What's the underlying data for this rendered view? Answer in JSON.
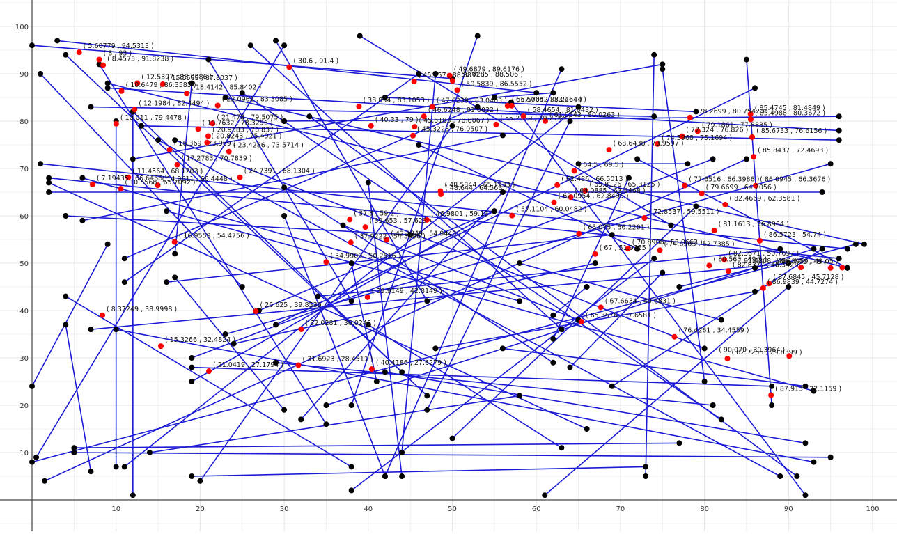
{
  "chart_data": {
    "type": "line",
    "x_ticks": [
      "10",
      "20",
      "30",
      "40",
      "50",
      "60",
      "70",
      "80",
      "90",
      "100"
    ],
    "y_ticks": [
      "10",
      "20",
      "30",
      "40",
      "50",
      "60",
      "70",
      "80",
      "90",
      "100"
    ],
    "xlim": [
      0,
      103
    ],
    "ylim": [
      -2,
      103
    ],
    "grid": true,
    "colors": {
      "segment": "#1a1ad6",
      "endpoint": "#000000",
      "intersection": "#ff0000",
      "grid": "#e6e6e6",
      "axis": "#444444"
    },
    "segments": [
      [
        0,
        96,
        50,
        89
      ],
      [
        0,
        8,
        98,
        54
      ],
      [
        0,
        24,
        9,
        54
      ],
      [
        0.5,
        9,
        30,
        96
      ],
      [
        1,
        90,
        25,
        45
      ],
      [
        1,
        71,
        97,
        53
      ],
      [
        2,
        68,
        96,
        51
      ],
      [
        2,
        67,
        66,
        15
      ],
      [
        2,
        65,
        94,
        65
      ],
      [
        1.5,
        4,
        85,
        72
      ],
      [
        3,
        97,
        60,
        86
      ],
      [
        4,
        94,
        47,
        22
      ],
      [
        4,
        60,
        45,
        56
      ],
      [
        4,
        43,
        38,
        7
      ],
      [
        4,
        37,
        7,
        6
      ],
      [
        5,
        11,
        77,
        12
      ],
      [
        5,
        10,
        95,
        9
      ],
      [
        6,
        68,
        58,
        42
      ],
      [
        6,
        59,
        56,
        77
      ],
      [
        7,
        83,
        74,
        81
      ],
      [
        7,
        36,
        90,
        50
      ],
      [
        8,
        92,
        35,
        16
      ],
      [
        9,
        88,
        97,
        49
      ],
      [
        9,
        87,
        96,
        78
      ],
      [
        10,
        80,
        10,
        7
      ],
      [
        10,
        36,
        93,
        8
      ],
      [
        11,
        51,
        53,
        83
      ],
      [
        11,
        46,
        46,
        90
      ],
      [
        11,
        7,
        65,
        83
      ],
      [
        12,
        82,
        44,
        27
      ],
      [
        12,
        72,
        75,
        92
      ],
      [
        12,
        1,
        12,
        82
      ],
      [
        13,
        79,
        96,
        76
      ],
      [
        14,
        10,
        58,
        22
      ],
      [
        15,
        76,
        89,
        5
      ],
      [
        16,
        61,
        93,
        23
      ],
      [
        16,
        46,
        69,
        56
      ],
      [
        17,
        52,
        19,
        88
      ],
      [
        17,
        47,
        30,
        19
      ],
      [
        17,
        76,
        80,
        32
      ],
      [
        19,
        30,
        81,
        72
      ],
      [
        20,
        4,
        50,
        79
      ],
      [
        19,
        5,
        73,
        7
      ],
      [
        19,
        28,
        88,
        24
      ],
      [
        19,
        25,
        55,
        61
      ],
      [
        21,
        93,
        38,
        42
      ],
      [
        23,
        85,
        99,
        54
      ],
      [
        23,
        35,
        95,
        71
      ],
      [
        24,
        33,
        67,
        50
      ],
      [
        25,
        86,
        82,
        17
      ],
      [
        26,
        96,
        63,
        36
      ],
      [
        27,
        40,
        55,
        61
      ],
      [
        29,
        97,
        47,
        42
      ],
      [
        29,
        37,
        86,
        87
      ],
      [
        29,
        29,
        81,
        20
      ],
      [
        30,
        80,
        96,
        81
      ],
      [
        30,
        66,
        62,
        29
      ],
      [
        30,
        60,
        42,
        5
      ],
      [
        32,
        17,
        56,
        65
      ],
      [
        33,
        81,
        91,
        5
      ],
      [
        34,
        43,
        89,
        53
      ],
      [
        35,
        20,
        93,
        53
      ],
      [
        37,
        58,
        65,
        38
      ],
      [
        38,
        50,
        41,
        25
      ],
      [
        38,
        2,
        74,
        51
      ],
      [
        39,
        98,
        76,
        58
      ],
      [
        40,
        37,
        63,
        11
      ],
      [
        42,
        27,
        92,
        12
      ],
      [
        42,
        85,
        79,
        82
      ],
      [
        44,
        10,
        48,
        90
      ],
      [
        44,
        5,
        40,
        67
      ],
      [
        46,
        75,
        72,
        53
      ],
      [
        47,
        19,
        64,
        80
      ],
      [
        48,
        32,
        86,
        44
      ],
      [
        50,
        13,
        79,
        62
      ],
      [
        53,
        98,
        38,
        20
      ],
      [
        55,
        85,
        62,
        86
      ],
      [
        56,
        32,
        92,
        24
      ],
      [
        57,
        84,
        92,
        1
      ],
      [
        58,
        50,
        82,
        38
      ],
      [
        61,
        1,
        90,
        45
      ],
      [
        62,
        34,
        71,
        68
      ],
      [
        63,
        91,
        42,
        5
      ],
      [
        64,
        28,
        75,
        48
      ],
      [
        65,
        71,
        78,
        71
      ],
      [
        66,
        45,
        62,
        39
      ],
      [
        69,
        24,
        94,
        53
      ],
      [
        72,
        72,
        97,
        49
      ],
      [
        73,
        5,
        74,
        94
      ],
      [
        75,
        91,
        80,
        25
      ],
      [
        77,
        45,
        86,
        49
      ],
      [
        85,
        93,
        88,
        20
      ]
    ],
    "intersections": [
      {
        "label": "( 5.60779 , 94.5313 )",
        "x": 5.60779,
        "y": 94.5313
      },
      {
        "label": "( 8 , 93 )",
        "x": 8,
        "y": 93
      },
      {
        "label": "( 8.4573 , 91.8238 )",
        "x": 8.4573,
        "y": 91.8238
      },
      {
        "label": "( 15.5583 , 87.8037 )",
        "x": 15.5583,
        "y": 87.8037
      },
      {
        "label": "( 18.4142 , 85.8402 )",
        "x": 18.4142,
        "y": 85.8402
      },
      {
        "label": "( 30.6 , 91.4 )",
        "x": 30.6,
        "y": 91.4
      },
      {
        "label": "( 22.0961 , 83.3085 )",
        "x": 22.0961,
        "y": 83.3085
      },
      {
        "label": "( 10.6479 , 86.3585 )",
        "x": 10.6479,
        "y": 86.3585
      },
      {
        "label": "( 12.5307 , 88.0086 )",
        "x": 12.5307,
        "y": 88.0086
      },
      {
        "label": "( 12.1984 , 82.4494 )",
        "x": 12.1984,
        "y": 82.4494
      },
      {
        "label": "( 21.478 , 79.5075 )",
        "x": 21.478,
        "y": 79.5075
      },
      {
        "label": "( 10.011 , 79.4478 )",
        "x": 10.011,
        "y": 79.4478
      },
      {
        "label": "( 19.7632 , 78.3296 )",
        "x": 19.7632,
        "y": 78.3296
      },
      {
        "label": "( 20.9583 , 76.837 )",
        "x": 20.9583,
        "y": 76.837
      },
      {
        "label": "( 20.8243 , 75.4921 )",
        "x": 20.8243,
        "y": 75.4921
      },
      {
        "label": "( 23.4286 , 73.5714 )",
        "x": 23.4286,
        "y": 73.5714
      },
      {
        "label": "( 16.369 , 73.969 )",
        "x": 16.369,
        "y": 73.969
      },
      {
        "label": "( 17.2783 , 70.7839 )",
        "x": 17.2783,
        "y": 70.7839
      },
      {
        "label": "( 24.7391 , 68.1304 )",
        "x": 24.7391,
        "y": 68.1304
      },
      {
        "label": "( 11.4564 , 68.1203 )",
        "x": 11.4564,
        "y": 68.1203
      },
      {
        "label": "( 14.9611 , 66.4448 )",
        "x": 14.9611,
        "y": 66.4448
      },
      {
        "label": "( 7.19435 , 66.6466 )",
        "x": 7.19435,
        "y": 66.6466
      },
      {
        "label": "( 10.5568 , 65.7092 )",
        "x": 10.5568,
        "y": 65.7092
      },
      {
        "label": "( 16.9559 , 54.4756 )",
        "x": 16.9559,
        "y": 54.4756
      },
      {
        "label": "( 38.894 , 83.1053 )",
        "x": 38.894,
        "y": 83.1053
      },
      {
        "label": "( 45.457 , 88.3831 )",
        "x": 45.457,
        "y": 88.3831
      },
      {
        "label": "( 49.6879 , 89.6176 )",
        "x": 49.6879,
        "y": 89.6176
      },
      {
        "label": "( 50.0285 , 88.506 )",
        "x": 50.0285,
        "y": 88.506
      },
      {
        "label": "( 50.5839 , 86.5552 )",
        "x": 50.5839,
        "y": 86.5552
      },
      {
        "label": "( 47.6239 , 83.0403 )",
        "x": 47.6239,
        "y": 83.0403
      },
      {
        "label": "( 57.0652 , 83.2644 )",
        "x": 57.0652,
        "y": 83.2644
      },
      {
        "label": "( 56.5704 , 83.2464 )",
        "x": 56.5704,
        "y": 83.2464
      },
      {
        "label": "( 46.6248 , 81.0032 )",
        "x": 46.6248,
        "y": 81.0032
      },
      {
        "label": "( 58.4654 , 81.0432 )",
        "x": 58.4654,
        "y": 81.0432
      },
      {
        "label": "( 61.0543 , 80.0263 )",
        "x": 61.0543,
        "y": 80.0263
      },
      {
        "label": "( 55.2119 , 79.2756 )",
        "x": 55.2119,
        "y": 79.2756
      },
      {
        "label": "( 45.5183 , 78.8067 )",
        "x": 45.5183,
        "y": 78.8067
      },
      {
        "label": "( 45.3223 , 76.9507 )",
        "x": 45.3223,
        "y": 76.9507
      },
      {
        "label": "( 40.33 , 79 )",
        "x": 40.33,
        "y": 79
      },
      {
        "label": "( 78.2699 , 80.7542 )",
        "x": 78.2699,
        "y": 80.7542
      },
      {
        "label": "( 85.4745 , 81.4849 )",
        "x": 85.4745,
        "y": 81.4849
      },
      {
        "label": "( 85.4988 , 80.3672 )",
        "x": 85.4988,
        "y": 80.3672
      },
      {
        "label": "( 79.1861 , 77.8835 )",
        "x": 79.1861,
        "y": 77.8835
      },
      {
        "label": "( 77.324 , 76.826 )",
        "x": 77.324,
        "y": 76.826
      },
      {
        "label": "( 85.6733 , 76.6156 )",
        "x": 85.6733,
        "y": 76.6156
      },
      {
        "label": "( 74.3968 , 75.1694 )",
        "x": 74.3968,
        "y": 75.1694
      },
      {
        "label": "( 68.6438 , 73.9597 )",
        "x": 68.6438,
        "y": 73.9597
      },
      {
        "label": "( 85.8437 , 72.4693 )",
        "x": 85.8437,
        "y": 72.4693
      },
      {
        "label": "( 64.5 , 69.5 )",
        "x": 64.5,
        "y": 69.5
      },
      {
        "label": "( 77.6516 , 66.3986 )",
        "x": 77.6516,
        "y": 66.3986
      },
      {
        "label": "( 86.0945 , 66.3676 )",
        "x": 86.0945,
        "y": 66.3676
      },
      {
        "label": "( 62.486 , 66.5013 )",
        "x": 62.486,
        "y": 66.5013
      },
      {
        "label": "( 65.8126 , 65.3125 )",
        "x": 65.8126,
        "y": 65.3125
      },
      {
        "label": "( 48.5844 , 65.1933 )",
        "x": 48.5844,
        "y": 65.1933
      },
      {
        "label": "( 48.644 , 64.563 )",
        "x": 48.644,
        "y": 64.563
      },
      {
        "label": "( 79.6699 , 64.7056 )",
        "x": 79.6699,
        "y": 64.7056
      },
      {
        "label": "( 64.0885 , 63.9468 )",
        "x": 64.0885,
        "y": 63.9468
      },
      {
        "label": "( 62.0954 , 62.8499 )",
        "x": 62.0954,
        "y": 62.8499
      },
      {
        "label": "( 82.4669 , 62.3581 )",
        "x": 82.4669,
        "y": 62.3581
      },
      {
        "label": "( 57.1104 , 60.0482 )",
        "x": 57.1104,
        "y": 60.0482
      },
      {
        "label": "( 72.8537 , 59.5511 )",
        "x": 72.8537,
        "y": 59.5511
      },
      {
        "label": "( 37.8 , 59.2 )",
        "x": 37.8,
        "y": 59.2
      },
      {
        "label": "( 46.9801 , 59.13 )",
        "x": 46.9801,
        "y": 59.13
      },
      {
        "label": "( 39.653 , 57.629 )",
        "x": 39.653,
        "y": 57.629
      },
      {
        "label": "( 81.1613 , 56.8964 )",
        "x": 81.1613,
        "y": 56.8964
      },
      {
        "label": "( 37.9222 , 54.3696 )",
        "x": 37.9222,
        "y": 54.3696
      },
      {
        "label": "( 42.1849 , 54.9443 )",
        "x": 42.1849,
        "y": 54.9443
      },
      {
        "label": "( 65.075 , 56.2201 )",
        "x": 65.075,
        "y": 56.2201
      },
      {
        "label": "( 86.5723 , 54.74 )",
        "x": 86.5723,
        "y": 54.74
      },
      {
        "label": "( 70.8908 , 53.0663 )",
        "x": 70.8908,
        "y": 53.0663
      },
      {
        "label": "( 74.6903 , 52.7385 )",
        "x": 74.6903,
        "y": 52.7385
      },
      {
        "label": "( 82.3671 , 50.7697 )",
        "x": 82.3671,
        "y": 50.7697
      },
      {
        "label": "( 80.563 , 49.5 )",
        "x": 80.563,
        "y": 49.5
      },
      {
        "label": "( 34.9909 , 50.2516 )",
        "x": 34.9909,
        "y": 50.2516
      },
      {
        "label": "( 67 , 51.9355 )",
        "x": 67,
        "y": 51.9355
      },
      {
        "label": "( 82.8377 , 48.342 )",
        "x": 82.8377,
        "y": 48.342
      },
      {
        "label": "( 91.4808 , 49.1 )",
        "x": 91.4808,
        "y": 49.1
      },
      {
        "label": "( 95 , 49 )",
        "x": 95,
        "y": 49
      },
      {
        "label": "( 96.3959 , 49.05 )",
        "x": 96.3959,
        "y": 49.05
      },
      {
        "label": "( 87.6845 , 45.7128 )",
        "x": 87.6845,
        "y": 45.7128
      },
      {
        "label": "( 86.9839 , 44.7274 )",
        "x": 86.9839,
        "y": 44.7274
      },
      {
        "label": "( 39.9149 , 42.8149 )",
        "x": 39.9149,
        "y": 42.8149
      },
      {
        "label": "( 67.6634 , 40.6831 )",
        "x": 67.6634,
        "y": 40.6831
      },
      {
        "label": "( 26.625 , 39.8539 )",
        "x": 26.625,
        "y": 39.8539
      },
      {
        "label": "( 65.3576 , 37.6581 )",
        "x": 65.3576,
        "y": 37.6581
      },
      {
        "label": "( 8.37249 , 38.9998 )",
        "x": 8.37249,
        "y": 38.9998
      },
      {
        "label": "( 32.0281 , 36.0246 )",
        "x": 32.0281,
        "y": 36.0246
      },
      {
        "label": "( 15.3266 , 32.4824 )",
        "x": 15.3266,
        "y": 32.4824
      },
      {
        "label": "( 76.4261 , 34.4559 )",
        "x": 76.4261,
        "y": 34.4559
      },
      {
        "label": "( 31.6923 , 28.4511 )",
        "x": 31.6923,
        "y": 28.4511
      },
      {
        "label": "( 40.4186 , 27.6279 )",
        "x": 40.4186,
        "y": 27.6279
      },
      {
        "label": "( 82.7255 , 29.8399 )",
        "x": 82.7255,
        "y": 29.8399
      },
      {
        "label": "( 90.079 , 30.3964 )",
        "x": 90.079,
        "y": 30.3964
      },
      {
        "label": "( 21.0419 , 27.1794 )",
        "x": 21.0419,
        "y": 27.1794
      },
      {
        "label": "( 87.913 , 22.1159 )",
        "x": 87.913,
        "y": 22.1159
      }
    ]
  }
}
